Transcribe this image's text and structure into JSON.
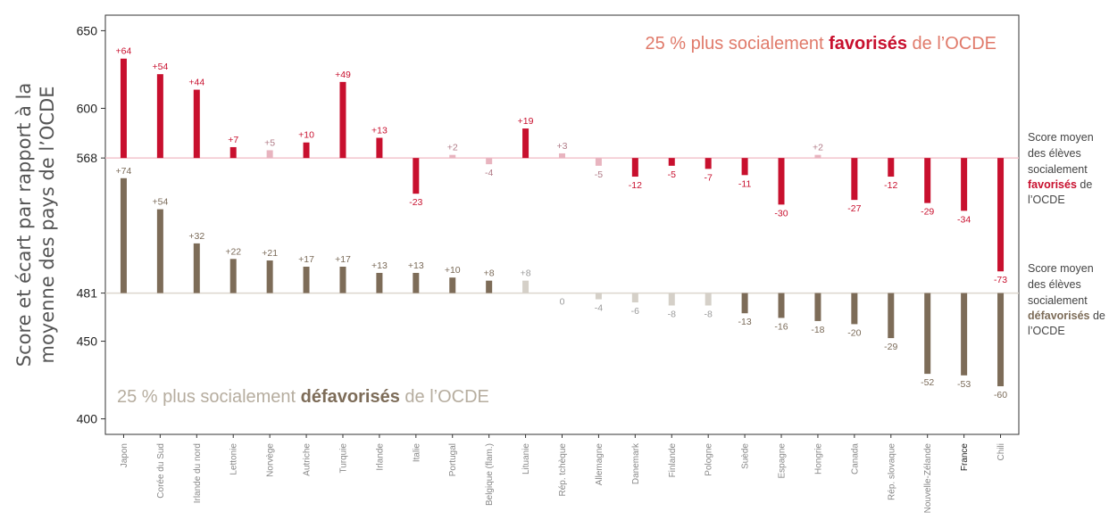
{
  "chart_data": {
    "type": "bar",
    "ylabel_line1": "Score et écart par rapport à la",
    "ylabel_line2": "moyenne des pays de l’OCDE",
    "ylim": [
      390,
      660
    ],
    "ytick_labels": [
      "650",
      "600",
      "568",
      "481",
      "450",
      "400"
    ],
    "yticks": [
      650,
      600,
      568,
      481,
      450,
      400
    ],
    "grid": false,
    "categories": [
      "Japon",
      "Corée du Sud",
      "Irlande du nord",
      "Lettonie",
      "Norvège",
      "Autriche",
      "Turquie",
      "Irlande",
      "Italie",
      "Portugal",
      "Belgique (flam.)",
      "Lituanie",
      "Rép. tchèque",
      "Allemagne",
      "Danemark",
      "Finlande",
      "Pologne",
      "Suède",
      "Espagne",
      "Hongrie",
      "Canada",
      "Rép. slovaque",
      "Nouvelle-Zélande",
      "France",
      "Chili"
    ],
    "highlight_category": "France",
    "series": [
      {
        "baseline": 568,
        "values": [
          64,
          54,
          44,
          7,
          5,
          10,
          49,
          13,
          -23,
          2,
          -4,
          19,
          3,
          -5,
          -12,
          -5,
          -7,
          -11,
          -30,
          2,
          -27,
          -12,
          -29,
          -34,
          -73
        ],
        "labels": [
          "+64",
          "+54",
          "+44",
          "+7",
          "+5",
          "+10",
          "+49",
          "+13",
          "-23",
          "+2",
          "-4",
          "+19",
          "+3",
          "-5",
          "-12",
          "-5",
          "-7",
          "-11",
          "-30",
          "+2",
          "-27",
          "-12",
          "-29",
          "-34",
          "-73"
        ],
        "light": [
          false,
          false,
          false,
          false,
          true,
          false,
          false,
          false,
          false,
          true,
          true,
          false,
          true,
          true,
          false,
          false,
          false,
          false,
          false,
          true,
          false,
          false,
          false,
          false,
          false
        ],
        "color": "#c8102e",
        "light_color": "#e8b4bf"
      },
      {
        "baseline": 481,
        "values": [
          74,
          54,
          32,
          22,
          21,
          17,
          17,
          13,
          13,
          10,
          8,
          8,
          0,
          -4,
          -6,
          -8,
          -8,
          -13,
          -16,
          -18,
          -20,
          -29,
          -52,
          -53,
          -60
        ],
        "labels": [
          "+74",
          "+54",
          "+32",
          "+22",
          "+21",
          "+17",
          "+17",
          "+13",
          "+13",
          "+10",
          "+8",
          "+8",
          "0",
          "-4",
          "-6",
          "-8",
          "-8",
          "-13",
          "-16",
          "-18",
          "-20",
          "-29",
          "-52",
          "-53",
          "-60"
        ],
        "light": [
          false,
          false,
          false,
          false,
          false,
          false,
          false,
          false,
          false,
          false,
          false,
          true,
          true,
          true,
          true,
          true,
          true,
          false,
          false,
          false,
          false,
          false,
          false,
          false,
          false
        ],
        "color": "#7d6c58",
        "light_color": "#d5d0c8"
      }
    ],
    "annotation_top": {
      "pre": "25 % plus socialement ",
      "bold": "favorisés",
      "post": " de l’OCDE",
      "color": "#e07a6a",
      "bold_color": "#c8102e"
    },
    "annotation_bottom": {
      "pre": "25 % plus socialement ",
      "bold": "défavorisés",
      "post": " de l’OCDE",
      "color": "#b6ad9f",
      "bold_color": "#7d6c58"
    },
    "side_top": {
      "line1": "Score moyen",
      "line2": "des élèves",
      "line3": "socialement",
      "bold": "favorisés",
      "after": " de",
      "line5": "l’OCDE"
    },
    "side_bottom": {
      "line1": "Score moyen",
      "line2": "des élèves",
      "line3": "socialement",
      "bold": "défavorisés",
      "after": " de",
      "line5": "l’OCDE"
    }
  }
}
